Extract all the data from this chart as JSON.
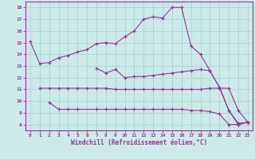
{
  "title": "",
  "xlabel": "Windchill (Refroidissement éolien,°C)",
  "bg_color": "#cceae7",
  "line_color": "#993399",
  "grid_color": "#aad4d0",
  "xlim": [
    -0.5,
    23.5
  ],
  "ylim": [
    7.5,
    18.5
  ],
  "yticks": [
    8,
    9,
    10,
    11,
    12,
    13,
    14,
    15,
    16,
    17,
    18
  ],
  "xticks": [
    0,
    1,
    2,
    3,
    4,
    5,
    6,
    7,
    8,
    9,
    10,
    11,
    12,
    13,
    14,
    15,
    16,
    17,
    18,
    19,
    20,
    21,
    22,
    23
  ],
  "curves": [
    {
      "x": [
        0,
        1,
        2,
        3,
        4,
        5,
        6,
        7,
        8,
        9,
        10,
        11,
        12,
        13,
        14,
        15,
        16,
        17,
        18,
        19,
        20,
        21,
        22,
        23
      ],
      "y": [
        15.1,
        13.2,
        13.3,
        13.7,
        13.9,
        14.2,
        14.4,
        14.9,
        15.0,
        14.9,
        15.5,
        16.0,
        17.0,
        17.2,
        17.1,
        18.0,
        18.0,
        14.7,
        14.0,
        12.6,
        11.2,
        9.2,
        8.0,
        8.2
      ]
    },
    {
      "x": [
        7,
        8,
        9,
        10,
        11,
        12,
        13,
        14,
        15,
        16,
        17,
        18,
        19,
        20,
        21,
        22,
        23
      ],
      "y": [
        12.8,
        12.4,
        12.7,
        12.0,
        12.1,
        12.1,
        12.2,
        12.3,
        12.4,
        12.5,
        12.6,
        12.7,
        12.6,
        11.2,
        9.2,
        8.1,
        8.2
      ]
    },
    {
      "x": [
        1,
        2,
        3,
        4,
        5,
        6,
        7,
        8,
        9,
        10,
        11,
        12,
        13,
        14,
        15,
        16,
        17,
        18,
        19,
        20,
        21,
        22,
        23
      ],
      "y": [
        11.1,
        11.1,
        11.1,
        11.1,
        11.1,
        11.1,
        11.1,
        11.1,
        11.0,
        11.0,
        11.0,
        11.0,
        11.0,
        11.0,
        11.0,
        11.0,
        11.0,
        11.0,
        11.1,
        11.1,
        11.1,
        9.2,
        8.2
      ]
    },
    {
      "x": [
        2,
        3,
        4,
        5,
        7,
        8,
        9,
        10,
        11,
        12,
        13,
        14,
        15,
        16,
        17,
        18,
        19,
        20,
        21,
        22,
        23
      ],
      "y": [
        9.9,
        9.3,
        9.3,
        9.3,
        9.3,
        9.3,
        9.3,
        9.3,
        9.3,
        9.3,
        9.3,
        9.3,
        9.3,
        9.3,
        9.2,
        9.2,
        9.1,
        8.9,
        8.0,
        8.0,
        8.2
      ]
    }
  ]
}
